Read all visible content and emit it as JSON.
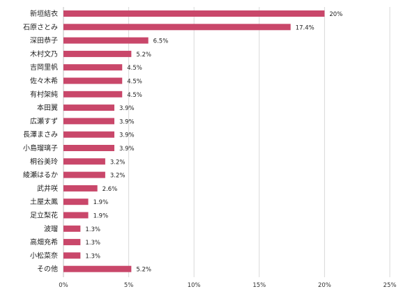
{
  "chart_data": {
    "type": "bar",
    "orientation": "horizontal",
    "categories": [
      "新垣結衣",
      "石原さとみ",
      "深田恭子",
      "木村文乃",
      "吉岡里帆",
      "佐々木希",
      "有村架純",
      "本田翼",
      "広瀬すず",
      "長澤まさみ",
      "小島瑠璃子",
      "桐谷美玲",
      "綾瀬はるか",
      "武井咲",
      "土屋太鳳",
      "足立梨花",
      "波瑠",
      "高畑充希",
      "小松菜奈",
      "その他"
    ],
    "values": [
      20,
      17.4,
      6.5,
      5.2,
      4.5,
      4.5,
      4.5,
      3.9,
      3.9,
      3.9,
      3.9,
      3.2,
      3.2,
      2.6,
      1.9,
      1.9,
      1.3,
      1.3,
      1.3,
      5.2
    ],
    "value_labels": [
      "20%",
      "17.4%",
      "6.5%",
      "5.2%",
      "4.5%",
      "4.5%",
      "4.5%",
      "3.9%",
      "3.9%",
      "3.9%",
      "3.9%",
      "3.2%",
      "3.2%",
      "2.6%",
      "1.9%",
      "1.9%",
      "1.3%",
      "1.3%",
      "1.3%",
      "5.2%"
    ],
    "xlim": [
      0,
      25
    ],
    "x_ticks": [
      0,
      5,
      10,
      15,
      20,
      25
    ],
    "x_tick_labels": [
      "0%",
      "5%",
      "10%",
      "15%",
      "20%",
      "25%"
    ],
    "grid": true,
    "bar_color": "#c9476a",
    "title": "",
    "xlabel": "",
    "ylabel": ""
  }
}
